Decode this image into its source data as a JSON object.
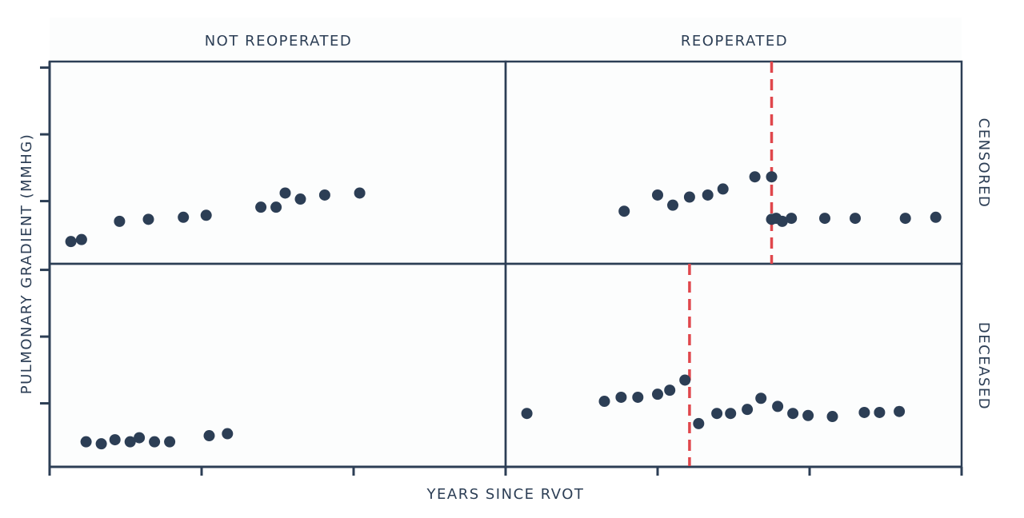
{
  "chart_data": {
    "type": "scatter",
    "xlabel": "YEARS SINCE RVOT",
    "ylabel": "PULMONARY GRADIENT (MMHG)",
    "column_labels": [
      "NOT REOPERATED",
      "REOPERATED"
    ],
    "row_labels": [
      "CENSORED",
      "DECEASED"
    ],
    "colors": {
      "point": "#2c3e55",
      "reference_line": "#e0474c",
      "frame": "#2c3e55",
      "background": "#fcfdfd"
    },
    "panels": [
      {
        "column": "NOT REOPERATED",
        "row": "CENSORED",
        "points": [
          [
            0.14,
            0.89
          ],
          [
            0.21,
            0.88
          ],
          [
            0.46,
            0.79
          ],
          [
            0.65,
            0.78
          ],
          [
            0.88,
            0.77
          ],
          [
            1.03,
            0.76
          ],
          [
            1.39,
            0.72
          ],
          [
            1.49,
            0.72
          ],
          [
            1.55,
            0.65
          ],
          [
            1.65,
            0.68
          ],
          [
            1.81,
            0.66
          ],
          [
            2.04,
            0.65
          ]
        ]
      },
      {
        "column": "REOPERATED",
        "row": "CENSORED",
        "reference_x": 1.75,
        "points": [
          [
            0.78,
            0.74
          ],
          [
            1.0,
            0.66
          ],
          [
            1.1,
            0.71
          ],
          [
            1.21,
            0.67
          ],
          [
            1.33,
            0.66
          ],
          [
            1.43,
            0.63
          ],
          [
            1.64,
            0.57
          ],
          [
            1.75,
            0.57
          ],
          [
            1.75,
            0.78
          ],
          [
            1.78,
            0.775
          ],
          [
            1.82,
            0.79
          ],
          [
            1.88,
            0.775
          ],
          [
            2.1,
            0.775
          ],
          [
            2.3,
            0.775
          ],
          [
            2.63,
            0.775
          ],
          [
            2.83,
            0.77
          ]
        ]
      },
      {
        "column": "NOT REOPERATED",
        "row": "DECEASED",
        "points": [
          [
            0.24,
            0.88
          ],
          [
            0.34,
            0.89
          ],
          [
            0.43,
            0.87
          ],
          [
            0.53,
            0.88
          ],
          [
            0.59,
            0.86
          ],
          [
            0.69,
            0.88
          ],
          [
            0.79,
            0.88
          ],
          [
            1.05,
            0.85
          ],
          [
            1.17,
            0.84
          ]
        ]
      },
      {
        "column": "REOPERATED",
        "row": "DECEASED",
        "reference_x": 1.21,
        "points": [
          [
            0.14,
            0.74
          ],
          [
            0.65,
            0.68
          ],
          [
            0.76,
            0.66
          ],
          [
            0.87,
            0.66
          ],
          [
            1.0,
            0.645
          ],
          [
            1.08,
            0.625
          ],
          [
            1.18,
            0.575
          ],
          [
            1.27,
            0.79
          ],
          [
            1.39,
            0.74
          ],
          [
            1.48,
            0.74
          ],
          [
            1.59,
            0.72
          ],
          [
            1.68,
            0.665
          ],
          [
            1.79,
            0.705
          ],
          [
            1.89,
            0.74
          ],
          [
            1.99,
            0.75
          ],
          [
            2.15,
            0.755
          ],
          [
            2.36,
            0.735
          ],
          [
            2.46,
            0.735
          ],
          [
            2.59,
            0.73
          ]
        ]
      }
    ]
  }
}
